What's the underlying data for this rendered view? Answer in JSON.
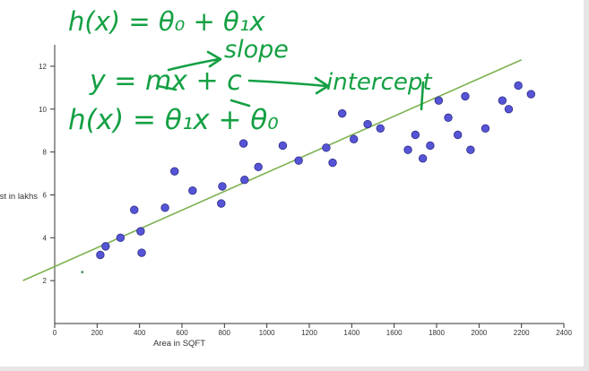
{
  "chart_data": {
    "type": "scatter",
    "xlabel": "Area in SQFT",
    "ylabel": "Cost in lakhs",
    "xlim": [
      0,
      2400
    ],
    "ylim": [
      0,
      13
    ],
    "xticks": [
      0,
      200,
      400,
      600,
      800,
      1000,
      1200,
      1400,
      1600,
      1800,
      2000,
      2200,
      2400
    ],
    "yticks": [
      2,
      4,
      6,
      8,
      10,
      12
    ],
    "points": [
      {
        "x": 215,
        "y": 3.2
      },
      {
        "x": 240,
        "y": 3.6
      },
      {
        "x": 310,
        "y": 4.0
      },
      {
        "x": 375,
        "y": 5.3
      },
      {
        "x": 405,
        "y": 4.3
      },
      {
        "x": 410,
        "y": 3.3
      },
      {
        "x": 520,
        "y": 5.4
      },
      {
        "x": 565,
        "y": 7.1
      },
      {
        "x": 650,
        "y": 6.2
      },
      {
        "x": 785,
        "y": 5.6
      },
      {
        "x": 790,
        "y": 6.4
      },
      {
        "x": 890,
        "y": 8.4
      },
      {
        "x": 895,
        "y": 6.7
      },
      {
        "x": 960,
        "y": 7.3
      },
      {
        "x": 1075,
        "y": 8.3
      },
      {
        "x": 1150,
        "y": 7.6
      },
      {
        "x": 1280,
        "y": 8.2
      },
      {
        "x": 1310,
        "y": 7.5
      },
      {
        "x": 1355,
        "y": 9.8
      },
      {
        "x": 1410,
        "y": 8.6
      },
      {
        "x": 1475,
        "y": 9.3
      },
      {
        "x": 1535,
        "y": 9.1
      },
      {
        "x": 1665,
        "y": 8.1
      },
      {
        "x": 1700,
        "y": 8.8
      },
      {
        "x": 1735,
        "y": 7.7
      },
      {
        "x": 1770,
        "y": 8.3
      },
      {
        "x": 1810,
        "y": 10.4
      },
      {
        "x": 1855,
        "y": 9.6
      },
      {
        "x": 1900,
        "y": 8.8
      },
      {
        "x": 1935,
        "y": 10.6
      },
      {
        "x": 1960,
        "y": 8.1
      },
      {
        "x": 2030,
        "y": 9.1
      },
      {
        "x": 2110,
        "y": 10.4
      },
      {
        "x": 2140,
        "y": 10.0
      },
      {
        "x": 2185,
        "y": 11.1
      },
      {
        "x": 2245,
        "y": 10.7
      }
    ],
    "stray_point": {
      "x": 130,
      "y": 2.4
    },
    "regression_line": {
      "x1": -150,
      "y1": 2.0,
      "x2": 2200,
      "y2": 12.3
    },
    "colors": {
      "point_fill": "#5654d6",
      "point_stroke": "#2d2d86",
      "line": "#7cb24f",
      "axis": "#333333",
      "text": "#333333"
    }
  },
  "annotations": {
    "color": "#14a043",
    "hypothesis_lhs": "h(x) = θ₀ + θ₁x",
    "line_equation": "y = mx + c",
    "slope_label": "slope",
    "intercept_label": "intercept",
    "hypothesis_swapped": "h(x) = θ₁x + θ₀"
  }
}
